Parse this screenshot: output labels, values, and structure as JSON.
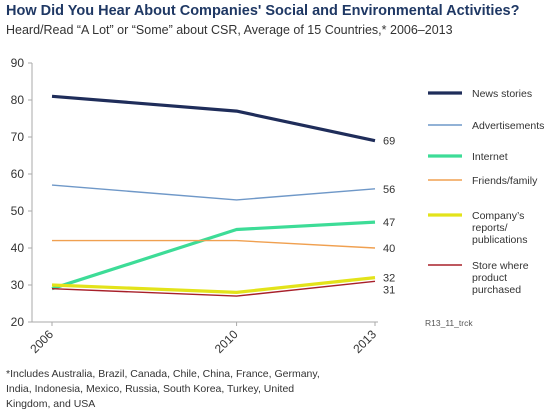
{
  "title": "How Did You Hear About Companies' Social and Environmental Activities?",
  "subtitle": "Heard/Read “A Lot” or “Some” about CSR, Average of 15 Countries,* 2006–2013",
  "footnote": "*Includes Australia, Brazil, Canada, Chile, China, France, Germany, India, Indonesia, Mexico, Russia, South Korea, Turkey, United Kingdom, and USA",
  "source_code": "R13_11_trck",
  "chart_data": {
    "type": "line",
    "x": [
      2006,
      2010,
      2013
    ],
    "xticks": [
      "2006",
      "2010",
      "2013"
    ],
    "ylim": [
      20,
      90
    ],
    "yticks": [
      20,
      30,
      40,
      50,
      60,
      70,
      80,
      90
    ],
    "grid": false,
    "legend": "right",
    "series": [
      {
        "name": "News stories",
        "legend_lines": [
          "News stories"
        ],
        "values": [
          81,
          77,
          69
        ],
        "end_label": "69",
        "color": "#1f2d5a",
        "width": 3.2
      },
      {
        "name": "Advertisements",
        "legend_lines": [
          "Advertisements"
        ],
        "values": [
          57,
          53,
          56
        ],
        "end_label": "56",
        "color": "#6f98c8",
        "width": 1.4
      },
      {
        "name": "Internet",
        "legend_lines": [
          "Internet"
        ],
        "values": [
          29,
          45,
          47
        ],
        "end_label": "47",
        "color": "#3ddc97",
        "width": 3.2
      },
      {
        "name": "Friends/family",
        "legend_lines": [
          "Friends/family"
        ],
        "values": [
          42,
          42,
          40
        ],
        "end_label": "40",
        "color": "#f0a050",
        "width": 1.4
      },
      {
        "name": "Company’s reports/ publications",
        "legend_lines": [
          "Company’s",
          "reports/",
          "publications"
        ],
        "values": [
          30,
          28,
          32
        ],
        "end_label": "32",
        "color": "#e3e31a",
        "width": 3.2
      },
      {
        "name": "Store where product purchased",
        "legend_lines": [
          "Store where",
          "product",
          "purchased"
        ],
        "values": [
          29,
          27,
          31
        ],
        "end_label": "31",
        "color": "#a8202a",
        "width": 1.4
      }
    ]
  }
}
